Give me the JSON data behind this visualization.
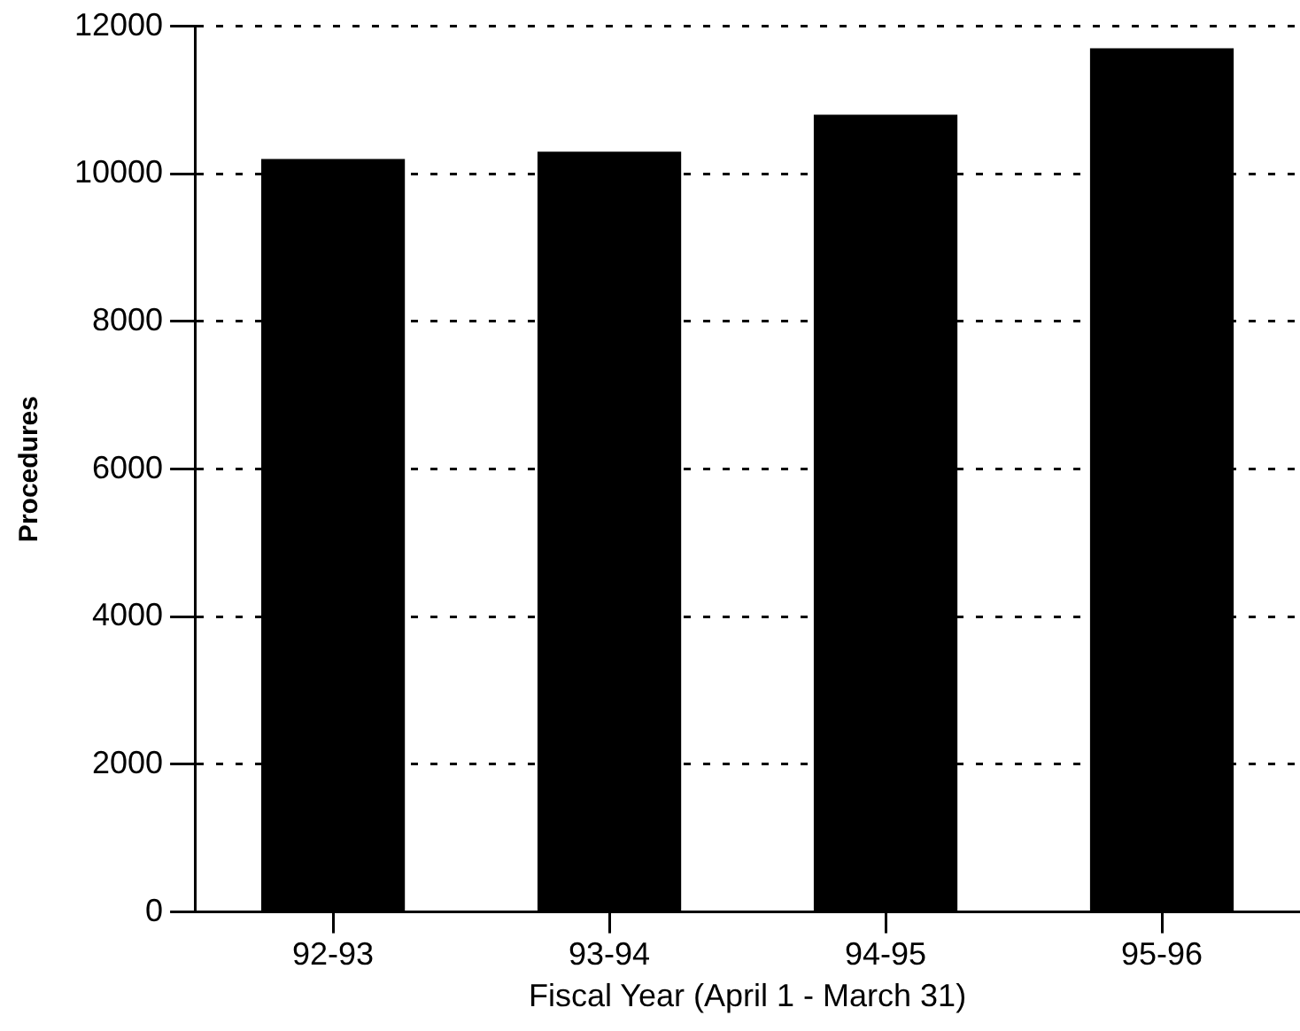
{
  "chart_data": {
    "type": "bar",
    "xlabel": "Fiscal Year (April 1 - March 31)",
    "ylabel": "Procedures",
    "categories": [
      "92-93",
      "93-94",
      "94-95",
      "95-96"
    ],
    "values": [
      10200,
      10300,
      10800,
      11700
    ],
    "color": "#000000",
    "ylim": [
      0,
      12000
    ],
    "yticks": [
      0,
      2000,
      4000,
      6000,
      8000,
      10000,
      12000
    ],
    "grid": "y"
  }
}
